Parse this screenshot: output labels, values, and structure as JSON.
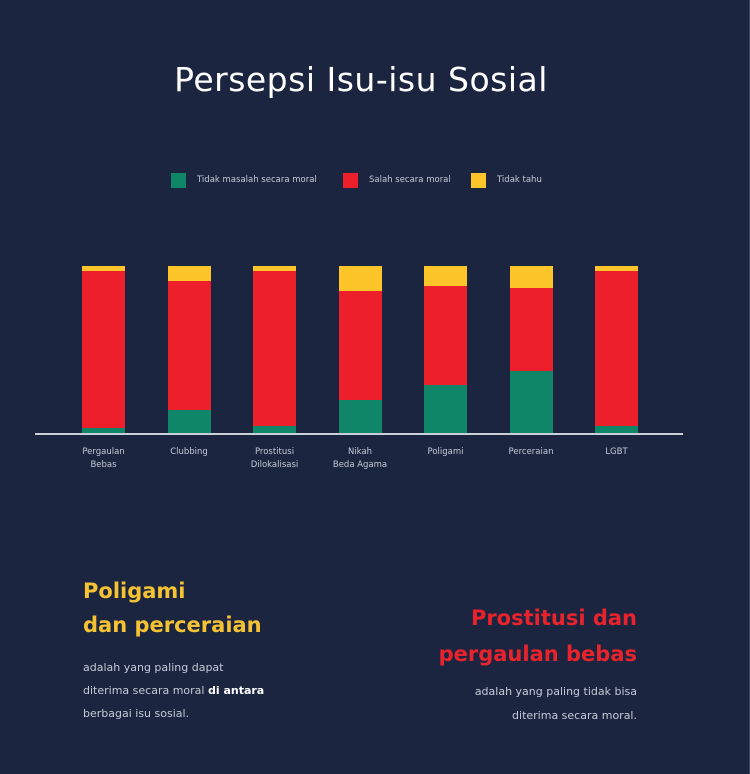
{
  "title": "Persepsi Isu-isu Sosial",
  "colors": {
    "background": "#1b2540",
    "green": "#0f8668",
    "red": "#ec1f2a",
    "yellow": "#fdc52a",
    "heading_yellow": "#f5c233",
    "heading_red": "#e8232c"
  },
  "legend": [
    {
      "label": "Tidak masalah secara moral",
      "color": "#0f8668"
    },
    {
      "label": "Salah secara moral",
      "color": "#ec1f2a"
    },
    {
      "label": "Tidak tahu",
      "color": "#fdc52a"
    }
  ],
  "categories": [
    {
      "line1": "Pergaulan",
      "line2": "Bebas"
    },
    {
      "line1": "Clubbing",
      "line2": ""
    },
    {
      "line1": "Prostitusi",
      "line2": "Dilokalisasi"
    },
    {
      "line1": "Nikah",
      "line2": "Beda Agama"
    },
    {
      "line1": "Poligami",
      "line2": ""
    },
    {
      "line1": "Perceraian",
      "line2": ""
    },
    {
      "line1": "LGBT",
      "line2": ""
    }
  ],
  "chart_data": {
    "type": "bar",
    "stacked": true,
    "title": "Persepsi Isu-isu Sosial",
    "xlabel": "",
    "ylabel": "",
    "ylim": [
      0,
      100
    ],
    "grid": false,
    "legend_position": "top",
    "categories": [
      "Pergaulan Bebas",
      "Clubbing",
      "Prostitusi Dilokalisasi",
      "Nikah Beda Agama",
      "Poligami",
      "Perceraian",
      "LGBT"
    ],
    "series": [
      {
        "name": "Tidak masalah secara moral",
        "color": "#0f8668",
        "values": [
          3,
          14,
          4,
          20,
          29,
          37,
          4
        ]
      },
      {
        "name": "Salah secara moral",
        "color": "#ec1f2a",
        "values": [
          94,
          77,
          93,
          65,
          59,
          50,
          93
        ]
      },
      {
        "name": "Tidak tahu",
        "color": "#fdc52a",
        "values": [
          3,
          9,
          3,
          15,
          12,
          13,
          3
        ]
      }
    ]
  },
  "callouts": {
    "left": {
      "heading_line1": "Poligami",
      "heading_line2": "dan perceraian",
      "body_line1": "adalah yang paling dapat",
      "body_line2_pre": "diterima secara moral ",
      "body_line2_bold": "di antara",
      "body_line3": "berbagai isu sosial."
    },
    "right": {
      "heading_line1": "Prostitusi dan",
      "heading_line2": "pergaulan bebas",
      "body_line1": "adalah yang paling tidak bisa",
      "body_line2": "diterima secara moral."
    }
  }
}
